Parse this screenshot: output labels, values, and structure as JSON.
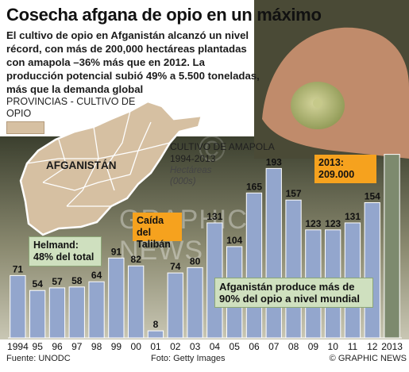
{
  "headline": "Cosecha afgana de opio en un máximo",
  "dek": "El cultivo de opio en Afganistán alcanzó un nivel récord, con más de 200,000 hectáreas plantadas con amapola –36% más que en 2012. La producción potencial subió 49% a 5.500 toneladas, más que la demanda global",
  "map": {
    "title": "PROVINCIAS - CULTIVO DE OPIO",
    "country_label": "AFGANISTÁN",
    "key_color": "#d6c0a2"
  },
  "callouts": {
    "helmand": "Helmand: 48% del total",
    "taliban": "Caída del Talibán",
    "year2013": "2013: 209.000",
    "produce": "Afganistán produce más de 90% del opio a nivel mundial"
  },
  "watermark": "GRAPHIC NEWS",
  "watermark_copy": "©",
  "footer": {
    "source": "Fuente: UNODC",
    "photo": "Foto: Getty Images",
    "brand": "© GRAPHIC NEWS"
  },
  "colors": {
    "bar": "#93a6cd",
    "bar_highlight": "#7d8a6e",
    "accent_orange": "#f6a21e",
    "callout_green": "#cfe0bf"
  },
  "chart_data": {
    "type": "bar",
    "title": "CULTIVO DE AMAPOLA 1994-2013",
    "subtitle": "Hectáreas",
    "unit": "(000s)",
    "categories": [
      "1994",
      "95",
      "96",
      "97",
      "98",
      "99",
      "00",
      "01",
      "02",
      "03",
      "04",
      "05",
      "06",
      "07",
      "08",
      "09",
      "10",
      "11",
      "12",
      "2013"
    ],
    "values": [
      71,
      54,
      57,
      58,
      64,
      91,
      82,
      8,
      74,
      80,
      131,
      104,
      165,
      193,
      157,
      123,
      123,
      131,
      154,
      209
    ],
    "value_labels": [
      "71",
      "54",
      "57",
      "58",
      "64",
      "91",
      "82",
      "8",
      "74",
      "80",
      "131",
      "104",
      "165",
      "193",
      "157",
      "123",
      "123",
      "131",
      "154",
      ""
    ],
    "highlight_index": 19,
    "ylim": [
      0,
      215
    ],
    "grid": false
  }
}
